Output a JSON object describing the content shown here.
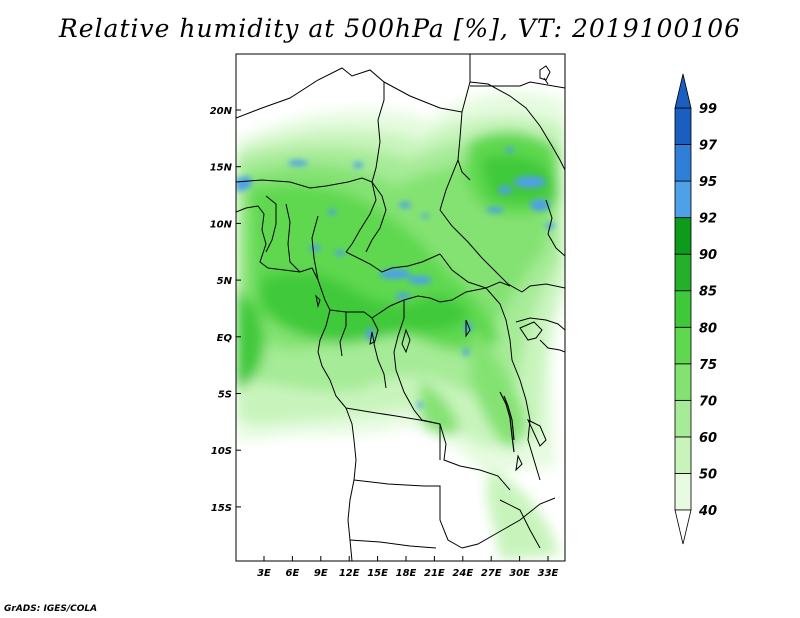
{
  "title": "Relative humidity at 500hPa [%], VT: 2019100106",
  "credit": "GrADS: IGES/COLA",
  "lat_labels": [
    "20N",
    "15N",
    "10N",
    "5N",
    "EQ",
    "5S",
    "10S",
    "15S"
  ],
  "lon_labels": [
    "3E",
    "6E",
    "9E",
    "12E",
    "15E",
    "18E",
    "21E",
    "24E",
    "27E",
    "30E",
    "33E"
  ],
  "colorbar": {
    "labels": [
      "40",
      "50",
      "60",
      "70",
      "75",
      "80",
      "85",
      "90",
      "92",
      "95",
      "97",
      "99"
    ],
    "colors": [
      "#ffffff",
      "#e6fbe0",
      "#c8f4bc",
      "#a6eb97",
      "#84e272",
      "#5fd84f",
      "#3fc93a",
      "#24b02a",
      "#0e9a1b",
      "#4ea0e8",
      "#2f7fd8",
      "#1a5ec0"
    ],
    "bands": [
      "40-50",
      "50-60",
      "60-70",
      "70-75",
      "75-80",
      "80-85",
      "85-90",
      "90-92",
      "92-95",
      "95-97",
      "97-99",
      ">99"
    ]
  }
}
